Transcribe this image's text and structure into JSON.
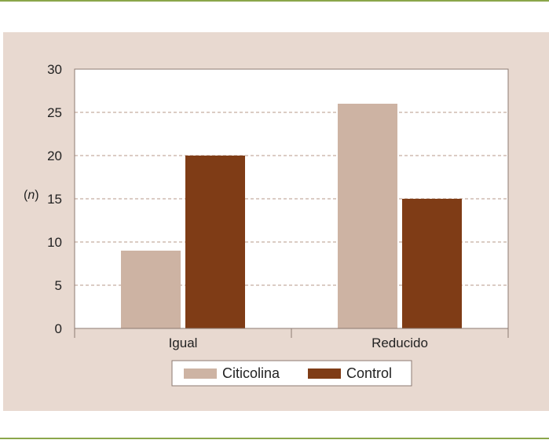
{
  "chart_data": {
    "type": "bar",
    "categories": [
      "Igual",
      "Reducido"
    ],
    "series": [
      {
        "name": "Citicolina",
        "values": [
          9,
          26
        ],
        "color": "#cdb3a3"
      },
      {
        "name": "Control",
        "values": [
          20,
          15
        ],
        "color": "#7f3c16"
      }
    ],
    "ylabel": "(n)",
    "ylim": [
      0,
      30
    ],
    "yticks": [
      0,
      5,
      10,
      15,
      20,
      25,
      30
    ],
    "grid": true,
    "legend_position": "bottom-center"
  },
  "colors": {
    "panel_background": "#e8d9d0",
    "plot_background": "#ffffff",
    "rule": "#8aa64a",
    "gridline": "#b79a8a",
    "axis": "#8c7a72"
  }
}
